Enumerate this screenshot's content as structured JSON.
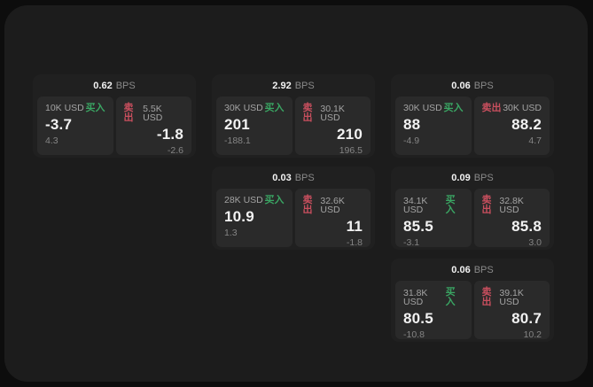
{
  "app": {
    "unit_label": "BPS",
    "buy_label": "买入",
    "sell_label": "卖出"
  },
  "colors": {
    "background": "#0d0d0d",
    "panel": "#1c1c1c",
    "card": "#202020",
    "tile": "#2a2a2a",
    "buy_green": "#3aa563",
    "sell_red": "#c94f5e",
    "value_white": "#f2f2f2",
    "size_label_gray": "#a3a3a3",
    "change_gray": "#858585",
    "unit_gray": "#8a8a8a"
  },
  "cards": [
    {
      "bps": "0.62",
      "col": 0,
      "row": 0,
      "buy": {
        "size": "10K USD",
        "price": "-3.7",
        "change": "4.3"
      },
      "sell": {
        "size": "5.5K USD",
        "price": "-1.8",
        "change": "-2.6"
      }
    },
    {
      "bps": "2.92",
      "col": 1,
      "row": 0,
      "buy": {
        "size": "30K USD",
        "price": "201",
        "change": "-188.1"
      },
      "sell": {
        "size": "30.1K USD",
        "price": "210",
        "change": "196.5"
      }
    },
    {
      "bps": "0.06",
      "col": 2,
      "row": 0,
      "buy": {
        "size": "30K USD",
        "price": "88",
        "change": "-4.9"
      },
      "sell": {
        "size": "30K USD",
        "price": "88.2",
        "change": "4.7"
      }
    },
    {
      "bps": "0.03",
      "col": 1,
      "row": 1,
      "buy": {
        "size": "28K USD",
        "price": "10.9",
        "change": "1.3"
      },
      "sell": {
        "size": "32.6K USD",
        "price": "11",
        "change": "-1.8"
      }
    },
    {
      "bps": "0.09",
      "col": 2,
      "row": 1,
      "buy": {
        "size": "34.1K USD",
        "price": "85.5",
        "change": "-3.1"
      },
      "sell": {
        "size": "32.8K USD",
        "price": "85.8",
        "change": "3.0"
      }
    },
    {
      "bps": "0.06",
      "col": 2,
      "row": 2,
      "buy": {
        "size": "31.8K USD",
        "price": "80.5",
        "change": "-10.8"
      },
      "sell": {
        "size": "39.1K USD",
        "price": "80.7",
        "change": "10.2"
      }
    }
  ]
}
